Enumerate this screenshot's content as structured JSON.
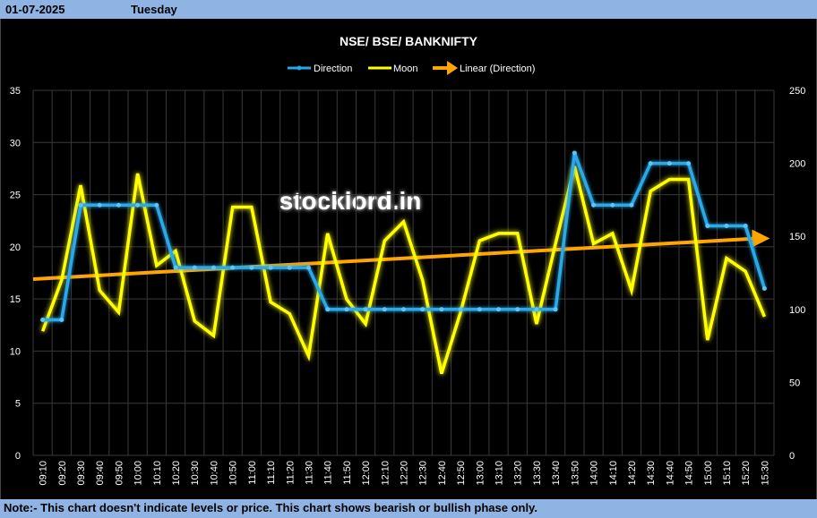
{
  "header": {
    "date": "01-07-2025",
    "day": "Tuesday"
  },
  "footer": {
    "note": "Note:- This chart doesn't indicate levels or price. This chart shows bearish or bullish phase only."
  },
  "watermark": "stocklord.in",
  "colors": {
    "direction": "#29a8e8",
    "moon": "#ffff00",
    "trend": "#ffa500",
    "grid": "#3a3a3a",
    "bar": "#8fb4e3"
  },
  "chart_data": {
    "type": "line",
    "title": "NSE/ BSE/ BANKNIFTY",
    "legend": [
      "Direction",
      "Moon",
      "Linear (Direction)"
    ],
    "legend_position": "top",
    "categories": [
      "09:10",
      "09:20",
      "09:30",
      "09:40",
      "09:50",
      "10:00",
      "10:10",
      "10:20",
      "10:30",
      "10:40",
      "10:50",
      "11:00",
      "11:10",
      "11:20",
      "11:30",
      "11:40",
      "11:50",
      "12:00",
      "12:10",
      "12:20",
      "12:30",
      "12:40",
      "12:50",
      "13:00",
      "13:10",
      "13:20",
      "13:30",
      "13:40",
      "13:50",
      "14:00",
      "14:10",
      "14:20",
      "14:30",
      "14:40",
      "14:50",
      "15:00",
      "15:10",
      "15:20",
      "15:30"
    ],
    "y_left": {
      "min": 0,
      "max": 35,
      "ticks": [
        0,
        5,
        10,
        15,
        20,
        25,
        30,
        35
      ]
    },
    "y_right": {
      "min": 0,
      "max": 250,
      "ticks": [
        0,
        50,
        100,
        150,
        200,
        250
      ]
    },
    "grid": true,
    "series": [
      {
        "name": "Direction",
        "axis": "left",
        "values": [
          13,
          13,
          24,
          24,
          24,
          24,
          24,
          18,
          18,
          18,
          18,
          18,
          18,
          18,
          18,
          14,
          14,
          14,
          14,
          14,
          14,
          14,
          14,
          14,
          14,
          14,
          14,
          14,
          29,
          24,
          24,
          24,
          28,
          28,
          28,
          22,
          22,
          22,
          16
        ]
      },
      {
        "name": "Moon",
        "axis": "right",
        "values": [
          85,
          120,
          185,
          113,
          98,
          193,
          130,
          140,
          92,
          82,
          170,
          170,
          105,
          97,
          68,
          152,
          107,
          90,
          147,
          160,
          120,
          56,
          98,
          147,
          152,
          152,
          90,
          145,
          198,
          145,
          152,
          113,
          181,
          189,
          189,
          79,
          135,
          126,
          95
        ]
      },
      {
        "name": "Linear (Direction)",
        "axis": "left",
        "trend": [
          16.9,
          20.8
        ]
      }
    ]
  }
}
